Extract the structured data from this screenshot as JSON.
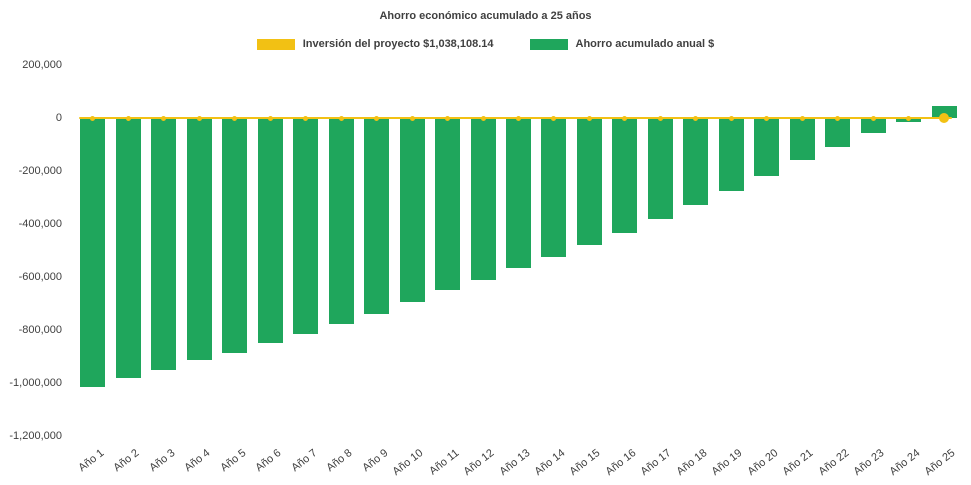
{
  "chart_data": {
    "type": "bar",
    "title": "Ahorro económico acumulado a 25 años",
    "xlabel": "",
    "ylabel": "",
    "legend_position": "top",
    "grid": false,
    "ylim": [
      -1200000,
      200000
    ],
    "ytick_interval": 200000,
    "ytick_values": [
      200000,
      0,
      -200000,
      -400000,
      -600000,
      -800000,
      -1000000,
      -1200000
    ],
    "ytick_labels": [
      "200,000",
      "0",
      "-200,000",
      "-400,000",
      "-600,000",
      "-800,000",
      "-1,000,000",
      "-1,200,000"
    ],
    "categories": [
      "Año 1",
      "Año 2",
      "Año 3",
      "Año 4",
      "Año 5",
      "Año 6",
      "Año 7",
      "Año 8",
      "Año 9",
      "Año 10",
      "Año 11",
      "Año 12",
      "Año 13",
      "Año 14",
      "Año 15",
      "Año 16",
      "Año 17",
      "Año 18",
      "Año 19",
      "Año 20",
      "Año 21",
      "Año 22",
      "Año 23",
      "Año 24",
      "Año 25"
    ],
    "series": [
      {
        "name": "Ahorro acumulado anual $",
        "type": "bar",
        "color": "#1FA65C",
        "values": [
          -1015000,
          -980000,
          -950000,
          -915000,
          -885000,
          -850000,
          -815000,
          -778000,
          -740000,
          -695000,
          -650000,
          -610000,
          -565000,
          -525000,
          -480000,
          -435000,
          -380000,
          -330000,
          -275000,
          -220000,
          -160000,
          -108000,
          -55000,
          -15000,
          45000
        ]
      },
      {
        "name": "Inversión del proyecto $1,038,108.14",
        "type": "line",
        "color": "#F2C114",
        "constant_value": 0,
        "marker": "circle"
      }
    ],
    "legend": [
      {
        "label": "Inversión del proyecto $1,038,108.14",
        "color": "#F2C114"
      },
      {
        "label": "Ahorro acumulado anual $",
        "color": "#1FA65C"
      }
    ]
  }
}
